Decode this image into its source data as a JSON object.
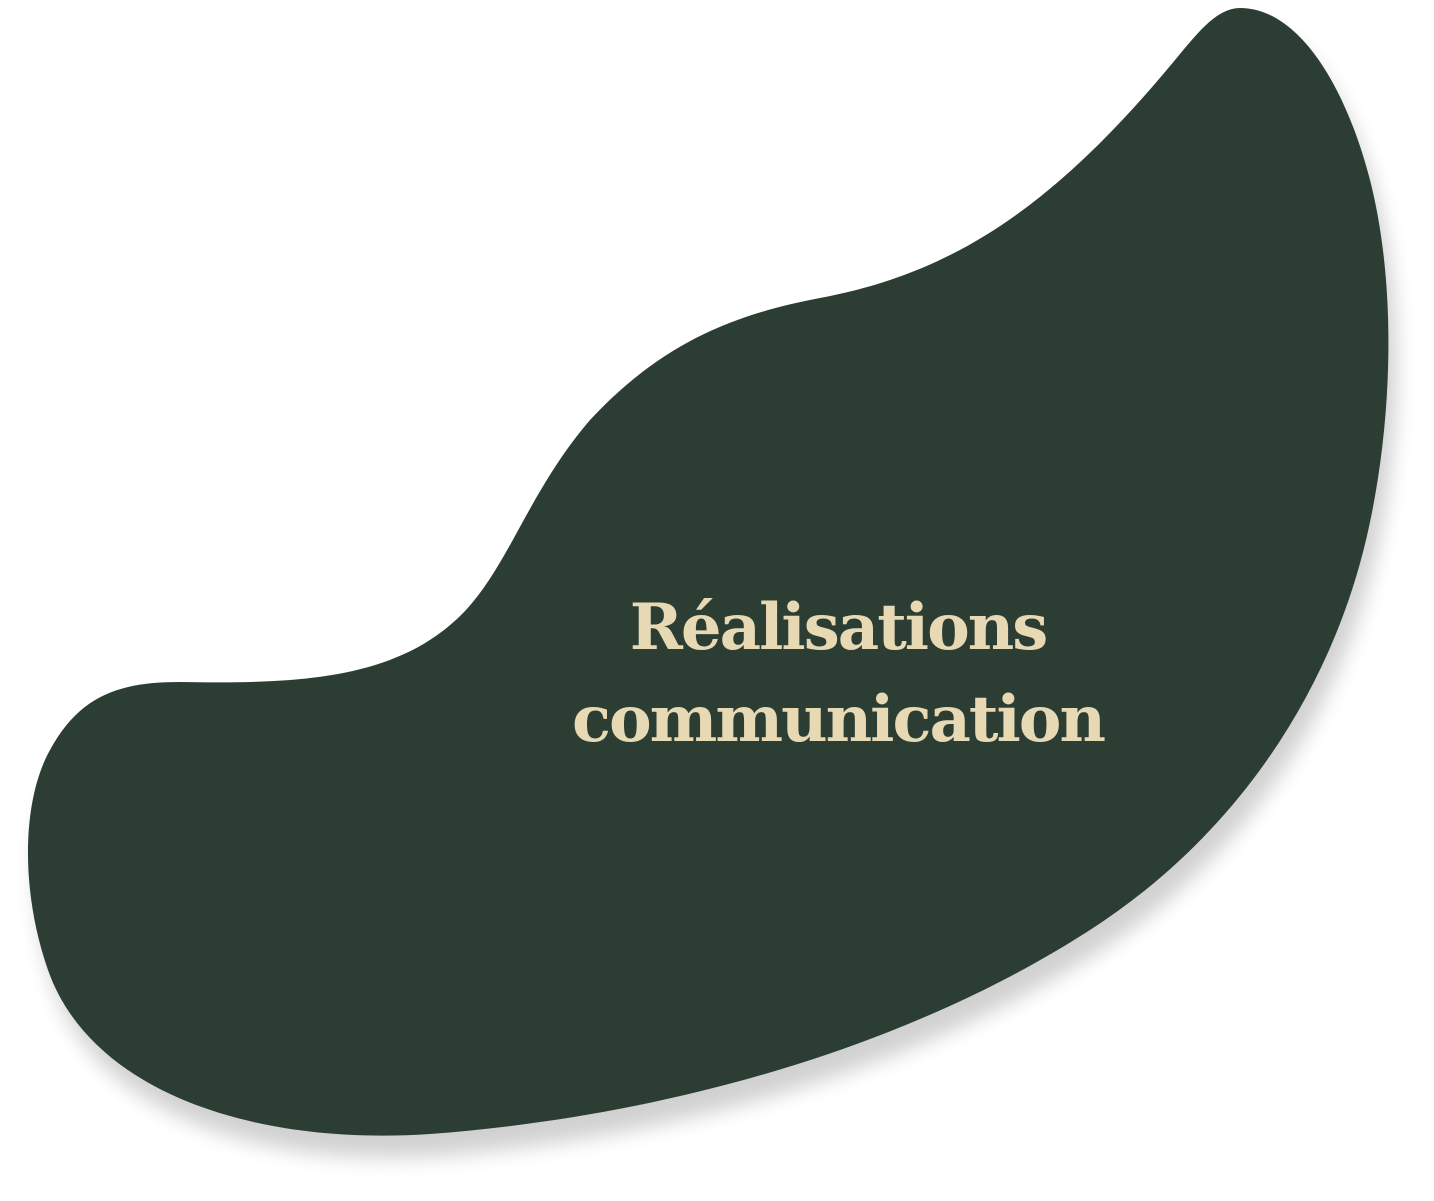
{
  "card": {
    "title_line1": "Réalisations",
    "title_line2": "communication"
  },
  "colors": {
    "blob": "#2c3e34",
    "text": "#e8d9b5",
    "background": "#ffffff"
  }
}
